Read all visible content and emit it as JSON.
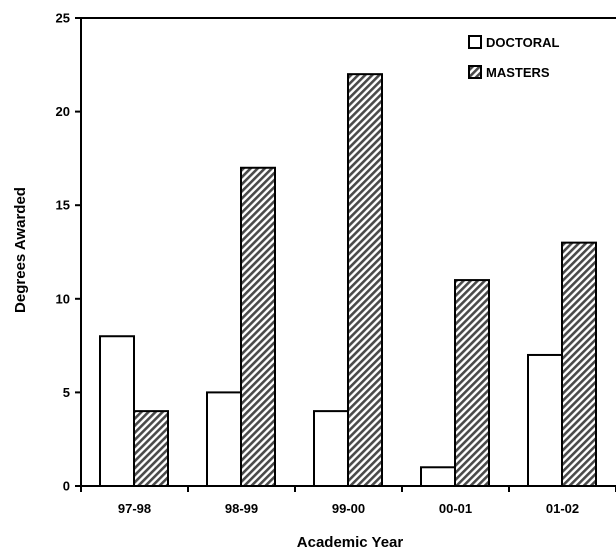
{
  "chart_data": {
    "type": "bar",
    "title": "",
    "xlabel": "Academic Year",
    "ylabel": "Degrees Awarded",
    "ylim": [
      0,
      25
    ],
    "yticks": [
      0,
      5,
      10,
      15,
      20,
      25
    ],
    "grid": false,
    "legend_position": "top-right",
    "categories": [
      "97-98",
      "98-99",
      "99-00",
      "00-01",
      "01-02"
    ],
    "series": [
      {
        "name": "DOCTORAL",
        "values": [
          8,
          5,
          4,
          1,
          7
        ],
        "fill": "#ffffff"
      },
      {
        "name": "MASTERS",
        "values": [
          4,
          17,
          22,
          11,
          13
        ],
        "fill": "hatched"
      }
    ]
  }
}
